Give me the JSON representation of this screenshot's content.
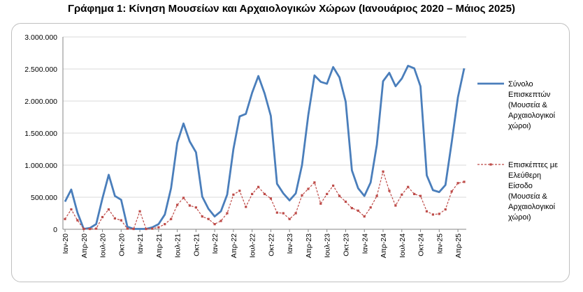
{
  "chart_data": {
    "type": "line",
    "title": "Γράφημα 1: Κίνηση Μουσείων και Αρχαιολογικών Χώρων (Ιανουάριος 2020 – Μάιος 2025)",
    "ylim": [
      0,
      3000000
    ],
    "yticks": [
      "0",
      "500.000",
      "1.000.000",
      "1.500.000",
      "2.000.000",
      "2.500.000",
      "3.000.000"
    ],
    "ytick_values": [
      0,
      500000,
      1000000,
      1500000,
      2000000,
      2500000,
      3000000
    ],
    "xtick_labels": [
      "Ιαν-20",
      "Απρ-20",
      "Ιουλ-20",
      "Οκτ-20",
      "Ιαν-21",
      "Απρ-21",
      "Ιουλ-21",
      "Οκτ-21",
      "Ιαν-22",
      "Απρ-22",
      "Ιουλ-22",
      "Οκτ-22",
      "Ιαν-23",
      "Απρ-23",
      "Ιουλ-23",
      "Οκτ-23",
      "Ιαν-24",
      "Απρ-24",
      "Ιουλ-24",
      "Οκτ-24",
      "Ιαν-25",
      "Απρ-25"
    ],
    "xtick_index": [
      0,
      3,
      6,
      9,
      12,
      15,
      18,
      21,
      24,
      27,
      30,
      33,
      36,
      39,
      42,
      45,
      48,
      51,
      54,
      57,
      60,
      63
    ],
    "grid": true,
    "legend_position": "right",
    "series": [
      {
        "name": "Σύνολο Επισκεπτών (Μουσεία & Αρχαιολογικοί χώροι)",
        "legend_lines": [
          "Σύνολο",
          "Επισκεπτών",
          "(Μουσεία &",
          "Αρχαιολογικοί",
          "χώροι)"
        ],
        "color": "#4a7ebb",
        "style": "solid",
        "values": [
          430000,
          620000,
          260000,
          5000,
          20000,
          80000,
          480000,
          850000,
          520000,
          460000,
          40000,
          5000,
          5000,
          5000,
          30000,
          80000,
          230000,
          640000,
          1350000,
          1650000,
          1370000,
          1200000,
          510000,
          320000,
          200000,
          280000,
          540000,
          1250000,
          1760000,
          1800000,
          2130000,
          2390000,
          2120000,
          1770000,
          710000,
          560000,
          450000,
          560000,
          1000000,
          1780000,
          2400000,
          2300000,
          2270000,
          2530000,
          2370000,
          1990000,
          920000,
          640000,
          520000,
          730000,
          1320000,
          2310000,
          2440000,
          2230000,
          2350000,
          2550000,
          2510000,
          2230000,
          840000,
          610000,
          580000,
          690000,
          1360000,
          2060000,
          2510000
        ]
      },
      {
        "name": "Επισκέπτες με Ελεύθερη Είσοδο (Μουσεία & Αρχαιολογικοί χώροι)",
        "legend_lines": [
          "Επισκέπτες με",
          "Ελεύθερη",
          "Είσοδο",
          "(Μουσεία &",
          "Αρχαιολογικοί",
          "χώροι)"
        ],
        "color": "#be4b48",
        "style": "dashed",
        "values": [
          160000,
          310000,
          140000,
          5000,
          5000,
          10000,
          190000,
          310000,
          170000,
          140000,
          10000,
          5000,
          280000,
          5000,
          10000,
          30000,
          80000,
          160000,
          380000,
          490000,
          370000,
          340000,
          200000,
          160000,
          80000,
          130000,
          250000,
          540000,
          600000,
          350000,
          550000,
          660000,
          550000,
          480000,
          260000,
          250000,
          160000,
          250000,
          530000,
          630000,
          730000,
          400000,
          550000,
          680000,
          520000,
          430000,
          330000,
          290000,
          200000,
          340000,
          520000,
          900000,
          600000,
          370000,
          540000,
          660000,
          550000,
          520000,
          280000,
          230000,
          240000,
          310000,
          590000,
          720000,
          740000
        ]
      }
    ]
  }
}
